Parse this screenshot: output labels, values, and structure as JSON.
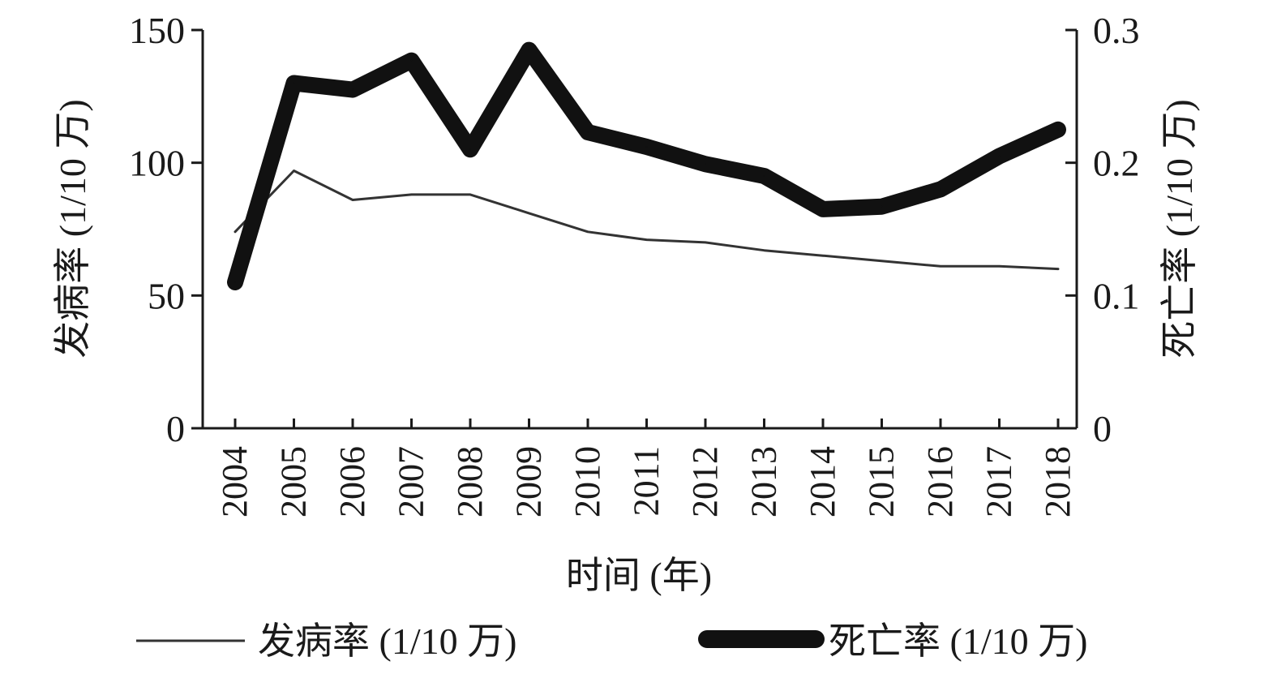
{
  "chart_data": {
    "type": "line",
    "title": "",
    "xlabel": "时间 (年)",
    "ylabel_left": "发病率 (1/10 万)",
    "ylabel_right": "死亡率 (1/10 万)",
    "categories": [
      "2004",
      "2005",
      "2006",
      "2007",
      "2008",
      "2009",
      "2010",
      "2011",
      "2012",
      "2013",
      "2014",
      "2015",
      "2016",
      "2017",
      "2018"
    ],
    "y_left": {
      "lim": [
        0,
        150
      ],
      "ticks": [
        0,
        50,
        100,
        150
      ],
      "tick_labels": [
        "0",
        "50",
        "100",
        "150"
      ]
    },
    "y_right": {
      "lim": [
        0,
        0.3
      ],
      "ticks": [
        0,
        0.1,
        0.2,
        0.3
      ],
      "tick_labels": [
        "0",
        "0.1",
        "0.2",
        "0.3"
      ]
    },
    "series": [
      {
        "name": "发病率 (1/10 万)",
        "axis": "left",
        "color": "#333333",
        "style": "thin",
        "values": [
          74,
          97,
          86,
          88,
          88,
          81,
          74,
          71,
          70,
          67,
          65,
          63,
          61,
          61,
          60
        ]
      },
      {
        "name": "死亡率 (1/10 万)",
        "axis": "right",
        "color": "#111111",
        "style": "thick",
        "values": [
          0.11,
          0.26,
          0.255,
          0.277,
          0.21,
          0.285,
          0.223,
          0.212,
          0.199,
          0.19,
          0.165,
          0.167,
          0.18,
          0.205,
          0.225
        ]
      }
    ],
    "legend": {
      "position": "bottom"
    },
    "grid": false
  }
}
